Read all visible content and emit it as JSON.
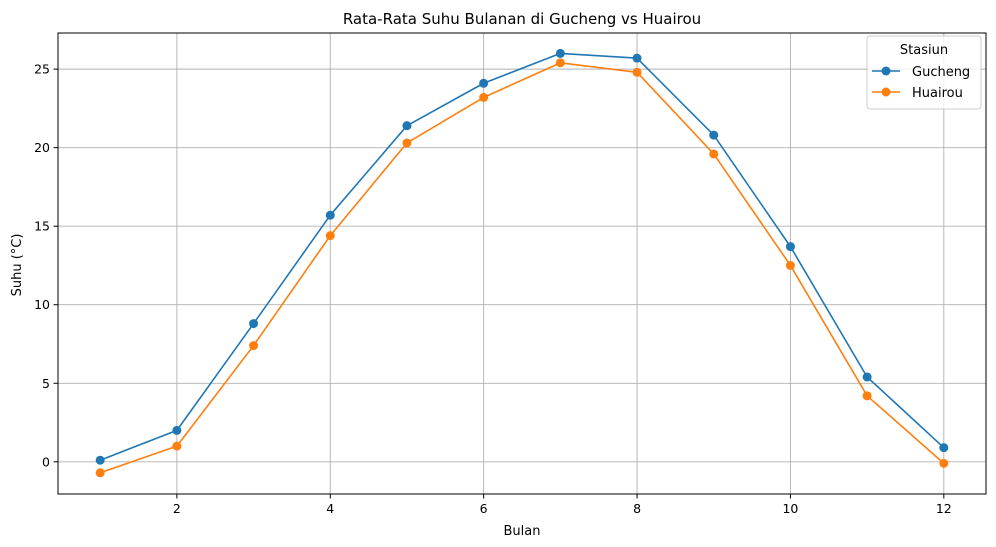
{
  "chart_data": {
    "type": "line",
    "title": "Rata-Rata Suhu Bulanan di Gucheng vs Huairou",
    "xlabel": "Bulan",
    "ylabel": "Suhu (°C)",
    "xlim": [
      0.45,
      12.55
    ],
    "ylim": [
      -2.05,
      27.3
    ],
    "x": [
      1,
      2,
      3,
      4,
      5,
      6,
      7,
      8,
      9,
      10,
      11,
      12
    ],
    "xticks": [
      2,
      4,
      6,
      8,
      10,
      12
    ],
    "yticks": [
      0,
      5,
      10,
      15,
      20,
      25
    ],
    "grid": true,
    "legend": {
      "title": "Stasiun",
      "placement": "top-right"
    },
    "series": [
      {
        "name": "Gucheng",
        "color": "#1f77b4",
        "marker": "circle",
        "values": [
          0.1,
          2.0,
          8.8,
          15.7,
          21.4,
          24.1,
          26.0,
          25.7,
          20.8,
          13.7,
          5.4,
          0.9
        ]
      },
      {
        "name": "Huairou",
        "color": "#ff7f0e",
        "marker": "circle",
        "values": [
          -0.7,
          1.0,
          7.4,
          14.4,
          20.3,
          23.2,
          25.4,
          24.8,
          19.6,
          12.5,
          4.2,
          -0.1
        ]
      }
    ]
  }
}
